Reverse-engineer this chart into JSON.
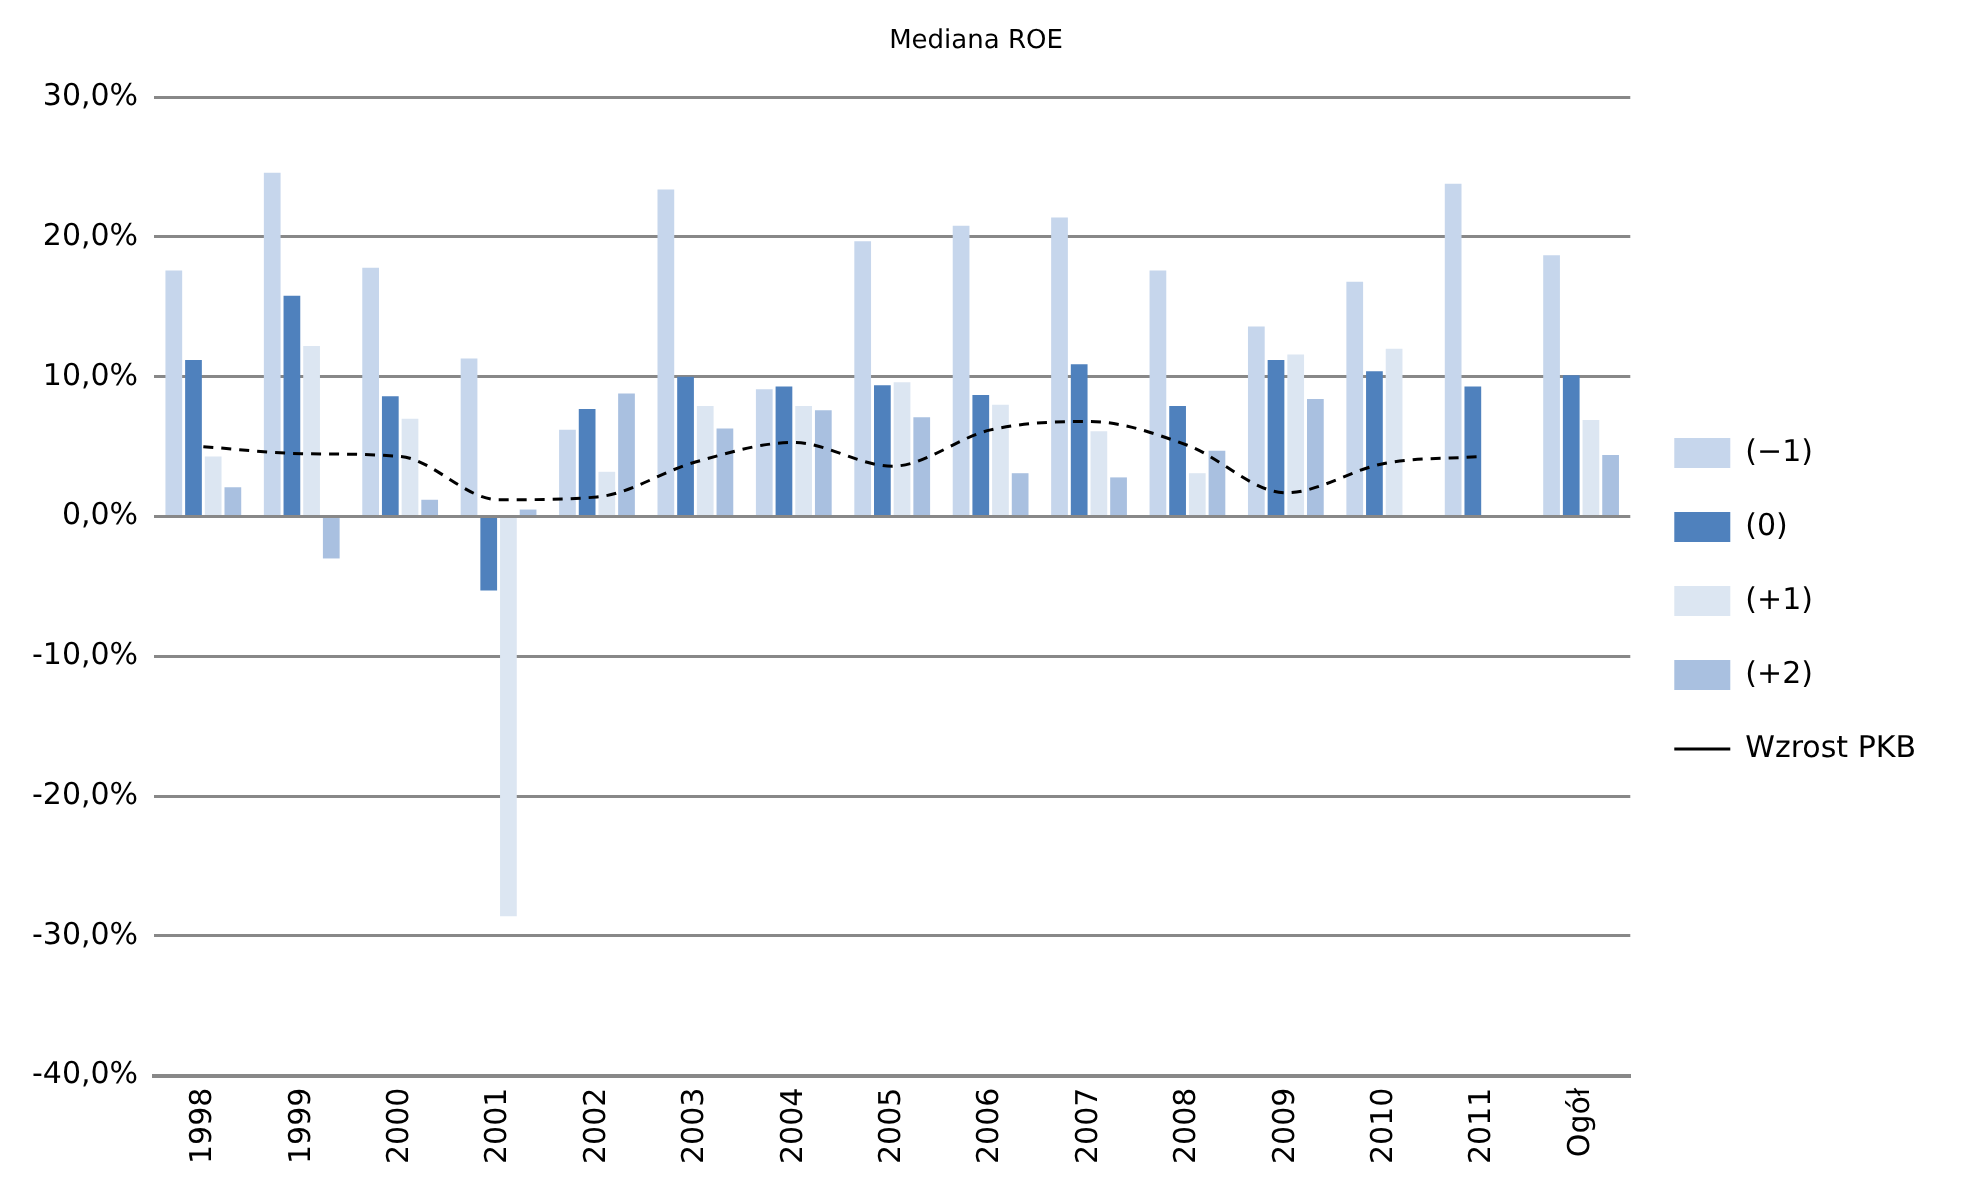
{
  "chart_data": {
    "type": "bar",
    "title": "Mediana ROE",
    "categories": [
      "1998",
      "1999",
      "2000",
      "2001",
      "2002",
      "2003",
      "2004",
      "2005",
      "2006",
      "2007",
      "2008",
      "2009",
      "2010",
      "2011",
      "Ogół"
    ],
    "series": [
      {
        "name": "(−1)",
        "color": "#c6d6ec",
        "values": [
          17.6,
          24.6,
          17.8,
          11.3,
          6.2,
          23.4,
          9.1,
          19.7,
          20.8,
          21.4,
          17.6,
          13.6,
          16.8,
          23.8,
          18.7
        ]
      },
      {
        "name": "(0)",
        "color": "#4f81bd",
        "values": [
          11.2,
          15.8,
          8.6,
          -5.3,
          7.7,
          10.0,
          9.3,
          9.4,
          8.7,
          10.9,
          7.9,
          11.2,
          10.4,
          9.3,
          10.1
        ]
      },
      {
        "name": "(+1)",
        "color": "#dce6f2",
        "values": [
          4.3,
          12.2,
          7.0,
          -28.6,
          3.2,
          7.9,
          7.9,
          9.6,
          8.0,
          6.1,
          3.1,
          11.6,
          12.0,
          null,
          6.9
        ]
      },
      {
        "name": "(+2)",
        "color": "#a9c0e0",
        "values": [
          2.1,
          -3.0,
          1.2,
          0.5,
          8.8,
          6.3,
          7.6,
          7.1,
          3.1,
          2.8,
          4.7,
          8.4,
          null,
          null,
          4.4
        ]
      },
      {
        "name": "Wzrost PKB",
        "type": "line",
        "color": "#000000",
        "line_style": "dashed",
        "values": [
          5.0,
          4.5,
          4.3,
          1.2,
          1.4,
          3.9,
          5.3,
          3.6,
          6.2,
          6.8,
          5.1,
          1.7,
          3.8,
          4.3,
          null
        ]
      }
    ],
    "ylim": [
      -40,
      30
    ],
    "yticks": [
      {
        "value": -40,
        "label": "-40,0%"
      },
      {
        "value": -30,
        "label": "-30,0%"
      },
      {
        "value": -20,
        "label": "-20,0%"
      },
      {
        "value": -10,
        "label": "-10,0%"
      },
      {
        "value": 0,
        "label": "0,0%"
      },
      {
        "value": 10,
        "label": "10,0%"
      },
      {
        "value": 20,
        "label": "20,0%"
      },
      {
        "value": 30,
        "label": "30,0%"
      }
    ],
    "grid": "y",
    "legend": "right"
  }
}
